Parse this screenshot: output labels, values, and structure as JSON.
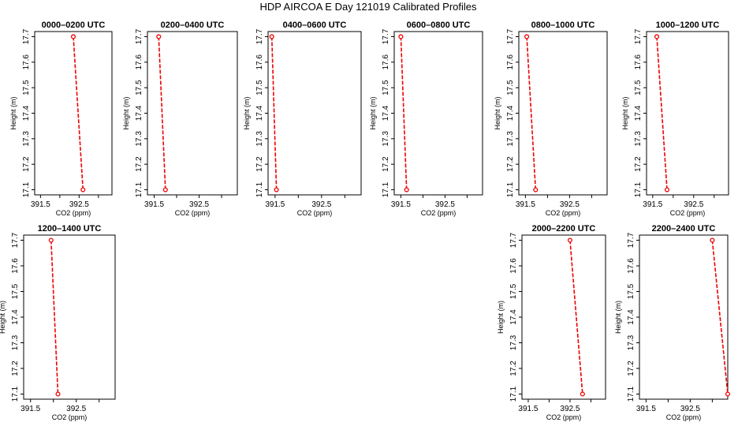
{
  "title": "HDP AIRCOA E  Day 121019  Calibrated Profiles",
  "line_color": "#ee0000",
  "chart_data": [
    {
      "type": "line",
      "title": "0000–0200 UTC",
      "xlabel": "CO2 (ppm)",
      "ylabel": "Height (m)",
      "xlim": [
        391.35,
        393.35
      ],
      "ylim": [
        17.08,
        17.72
      ],
      "xticks": [
        391.5,
        392,
        392.5,
        393
      ],
      "xtick_labels": [
        "391.5",
        "",
        "392.5",
        ""
      ],
      "yticks": [
        17.1,
        17.2,
        17.3,
        17.4,
        17.5,
        17.6,
        17.7
      ],
      "ytick_labels": [
        "17.1",
        "17.2",
        "17.3",
        "17.4",
        "17.5",
        "17.6",
        "17.7"
      ],
      "series": [
        {
          "x": [
            392.35,
            392.6
          ],
          "y": [
            17.7,
            17.1
          ]
        }
      ]
    },
    {
      "type": "line",
      "title": "0200–0400 UTC",
      "xlabel": "CO2 (ppm)",
      "ylabel": "Height (m)",
      "xlim": [
        391.35,
        393.35
      ],
      "ylim": [
        17.08,
        17.72
      ],
      "xticks": [
        391.5,
        392,
        392.5,
        393
      ],
      "xtick_labels": [
        "391.5",
        "",
        "392.5",
        ""
      ],
      "yticks": [
        17.1,
        17.2,
        17.3,
        17.4,
        17.5,
        17.6,
        17.7
      ],
      "ytick_labels": [
        "17.1",
        "17.2",
        "17.3",
        "17.4",
        "17.5",
        "17.6",
        "17.7"
      ],
      "series": [
        {
          "x": [
            391.6,
            391.75
          ],
          "y": [
            17.7,
            17.1
          ]
        }
      ]
    },
    {
      "type": "line",
      "title": "0400–0600 UTC",
      "xlabel": "CO2 (ppm)",
      "ylabel": "Height (m)",
      "xlim": [
        391.35,
        393.35
      ],
      "ylim": [
        17.08,
        17.72
      ],
      "xticks": [
        391.5,
        392,
        392.5,
        393
      ],
      "xtick_labels": [
        "391.5",
        "",
        "392.5",
        ""
      ],
      "yticks": [
        17.1,
        17.2,
        17.3,
        17.4,
        17.5,
        17.6,
        17.7
      ],
      "ytick_labels": [
        "17.1",
        "17.2",
        "17.3",
        "17.4",
        "17.5",
        "17.6",
        "17.7"
      ],
      "series": [
        {
          "x": [
            391.43,
            391.53
          ],
          "y": [
            17.7,
            17.1
          ]
        }
      ]
    },
    {
      "type": "line",
      "title": "0600–0800 UTC",
      "xlabel": "CO2 (ppm)",
      "ylabel": "Height (m)",
      "xlim": [
        391.35,
        393.35
      ],
      "ylim": [
        17.08,
        17.72
      ],
      "xticks": [
        391.5,
        392,
        392.5,
        393
      ],
      "xtick_labels": [
        "391.5",
        "",
        "392.5",
        ""
      ],
      "yticks": [
        17.1,
        17.2,
        17.3,
        17.4,
        17.5,
        17.6,
        17.7
      ],
      "ytick_labels": [
        "17.1",
        "17.2",
        "17.3",
        "17.4",
        "17.5",
        "17.6",
        "17.7"
      ],
      "series": [
        {
          "x": [
            391.5,
            391.63
          ],
          "y": [
            17.7,
            17.1
          ]
        }
      ]
    },
    {
      "type": "line",
      "title": "0800–1000 UTC",
      "xlabel": "CO2 (ppm)",
      "ylabel": "Height (m)",
      "xlim": [
        391.35,
        393.35
      ],
      "ylim": [
        17.08,
        17.72
      ],
      "xticks": [
        391.5,
        392,
        392.5,
        393
      ],
      "xtick_labels": [
        "391.5",
        "",
        "392.5",
        ""
      ],
      "yticks": [
        17.1,
        17.2,
        17.3,
        17.4,
        17.5,
        17.6,
        17.7
      ],
      "ytick_labels": [
        "17.1",
        "17.2",
        "17.3",
        "17.4",
        "17.5",
        "17.6",
        "17.7"
      ],
      "series": [
        {
          "x": [
            391.53,
            391.73
          ],
          "y": [
            17.7,
            17.1
          ]
        }
      ]
    },
    {
      "type": "line",
      "title": "1000–1200 UTC",
      "xlabel": "CO2 (ppm)",
      "ylabel": "Height (m)",
      "xlim": [
        391.35,
        393.35
      ],
      "ylim": [
        17.08,
        17.72
      ],
      "xticks": [
        391.5,
        392,
        392.5,
        393
      ],
      "xtick_labels": [
        "391.5",
        "",
        "392.5",
        ""
      ],
      "yticks": [
        17.1,
        17.2,
        17.3,
        17.4,
        17.5,
        17.6,
        17.7
      ],
      "ytick_labels": [
        "17.1",
        "17.2",
        "17.3",
        "17.4",
        "17.5",
        "17.6",
        "17.7"
      ],
      "series": [
        {
          "x": [
            391.6,
            391.85
          ],
          "y": [
            17.7,
            17.1
          ]
        }
      ]
    },
    {
      "type": "line",
      "title": "1200–1400 UTC",
      "xlabel": "CO2 (ppm)",
      "ylabel": "Height (m)",
      "xlim": [
        391.35,
        393.35
      ],
      "ylim": [
        17.08,
        17.72
      ],
      "xticks": [
        391.5,
        392,
        392.5,
        393
      ],
      "xtick_labels": [
        "391.5",
        "",
        "392.5",
        ""
      ],
      "yticks": [
        17.1,
        17.2,
        17.3,
        17.4,
        17.5,
        17.6,
        17.7
      ],
      "ytick_labels": [
        "17.1",
        "17.2",
        "17.3",
        "17.4",
        "17.5",
        "17.6",
        "17.7"
      ],
      "series": [
        {
          "x": [
            391.95,
            392.1
          ],
          "y": [
            17.7,
            17.1
          ]
        }
      ]
    },
    {
      "type": "line",
      "title": "2000–2200 UTC",
      "xlabel": "CO2 (ppm)",
      "ylabel": "Height (m)",
      "xlim": [
        391.35,
        393.35
      ],
      "ylim": [
        17.08,
        17.72
      ],
      "xticks": [
        391.5,
        392,
        392.5,
        393
      ],
      "xtick_labels": [
        "391.5",
        "",
        "392.5",
        ""
      ],
      "yticks": [
        17.1,
        17.2,
        17.3,
        17.4,
        17.5,
        17.6,
        17.7
      ],
      "ytick_labels": [
        "17.1",
        "17.2",
        "17.3",
        "17.4",
        "17.5",
        "17.6",
        "17.7"
      ],
      "series": [
        {
          "x": [
            392.5,
            392.8
          ],
          "y": [
            17.7,
            17.1
          ]
        }
      ]
    },
    {
      "type": "line",
      "title": "2200–2400 UTC",
      "xlabel": "CO2 (ppm)",
      "ylabel": "Height (m)",
      "xlim": [
        391.35,
        393.35
      ],
      "ylim": [
        17.08,
        17.72
      ],
      "xticks": [
        391.5,
        392,
        392.5,
        393
      ],
      "xtick_labels": [
        "391.5",
        "",
        "392.5",
        ""
      ],
      "yticks": [
        17.1,
        17.2,
        17.3,
        17.4,
        17.5,
        17.6,
        17.7
      ],
      "ytick_labels": [
        "17.1",
        "17.2",
        "17.3",
        "17.4",
        "17.5",
        "17.6",
        "17.7"
      ],
      "series": [
        {
          "x": [
            393.0,
            393.35
          ],
          "y": [
            17.7,
            17.1
          ]
        }
      ]
    }
  ]
}
